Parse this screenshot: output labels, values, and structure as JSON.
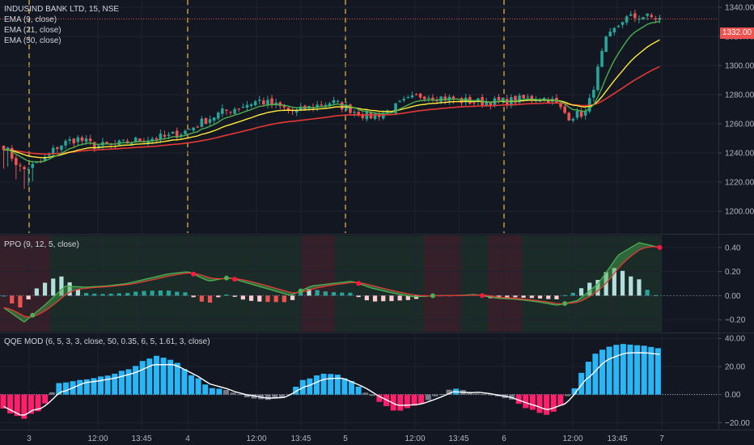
{
  "legend": {
    "symbol": "INDUSIND BANK LTD, 15, NSE",
    "ema9": "EMA (9, close)",
    "ema21": "EMA (21, close)",
    "ema50": "EMA (50, close)",
    "ppo": "PPO (9, 12, 5, close)",
    "qqe": "QQE MOD (6, 5, 3, 3, close, 50, 0.35, 6, 5, 1.61, 3, close)"
  },
  "current_price": "1332.00",
  "colors": {
    "background": "#131722",
    "up": "#26a69a",
    "down": "#ef5350",
    "ema9": "#4caf50",
    "ema21": "#ffeb3b",
    "ema50": "#e53935",
    "session": "#e0b340",
    "qqe_up": "#29b6f6",
    "qqe_down": "#ff1f6b",
    "qqe_neutral": "#787b86"
  },
  "time_axis": [
    "3",
    "12:00",
    "13:45",
    "4",
    "12:00",
    "13:45",
    "5",
    "12:00",
    "13:45",
    "6",
    "12:00",
    "13:45",
    "7"
  ],
  "chart_data": [
    {
      "type": "candlestick",
      "title": "INDUSIND BANK LTD, 15, NSE",
      "ylim": [
        1185,
        1345
      ],
      "yticks": [
        "1340.00",
        "1320.00",
        "1300.00",
        "1280.00",
        "1260.00",
        "1240.00",
        "1220.00",
        "1200.00"
      ],
      "ytick_values": [
        1340,
        1320,
        1300,
        1280,
        1260,
        1240,
        1220,
        1200
      ],
      "series": [
        {
          "name": "EMA (9, close)"
        },
        {
          "name": "EMA (21, close)"
        },
        {
          "name": "EMA (50, close)"
        }
      ],
      "anchors": [
        1245,
        1228,
        1233,
        1245,
        1250,
        1245,
        1245,
        1248,
        1250,
        1251,
        1255,
        1262,
        1268,
        1272,
        1276,
        1272,
        1268,
        1272,
        1275,
        1270,
        1265,
        1268,
        1275,
        1280,
        1278,
        1276,
        1275,
        1275,
        1276,
        1278,
        1277,
        1265,
        1268,
        1316,
        1332,
        1334,
        1332
      ]
    },
    {
      "type": "line",
      "title": "PPO (9, 12, 5, close)",
      "ylim": [
        -0.3,
        0.5
      ],
      "yticks": [
        "0.40",
        "0.20",
        "0.00",
        "−0.20"
      ],
      "ytick_values": [
        0.4,
        0.2,
        0.0,
        -0.2
      ],
      "anchors": [
        -0.1,
        -0.22,
        -0.08,
        0.08,
        0.07,
        0.08,
        0.1,
        0.14,
        0.18,
        0.2,
        0.12,
        0.15,
        0.1,
        0.05,
        0.0,
        0.08,
        0.1,
        0.12,
        0.06,
        0.02,
        -0.01,
        0.0,
        0.0,
        0.01,
        -0.02,
        -0.03,
        -0.05,
        -0.08,
        -0.04,
        0.1,
        0.34,
        0.44,
        0.4
      ]
    },
    {
      "type": "bar",
      "title": "QQE MOD (6, 5, 3, 3, close, 50, 0.35, 6, 5, 1.61, 3, close)",
      "ylim": [
        -25,
        43
      ],
      "yticks": [
        "40.00",
        "20.00",
        "0.00",
        "−20.00"
      ],
      "ytick_values": [
        40,
        20,
        0,
        -20
      ],
      "anchors": [
        -10,
        -18,
        -10,
        8,
        10,
        12,
        15,
        20,
        28,
        25,
        15,
        5,
        3,
        -2,
        -4,
        -2,
        10,
        15,
        14,
        5,
        -5,
        -12,
        -8,
        -2,
        5,
        1,
        0,
        -3,
        -10,
        -15,
        -5,
        20,
        33,
        36,
        35,
        33
      ]
    }
  ]
}
